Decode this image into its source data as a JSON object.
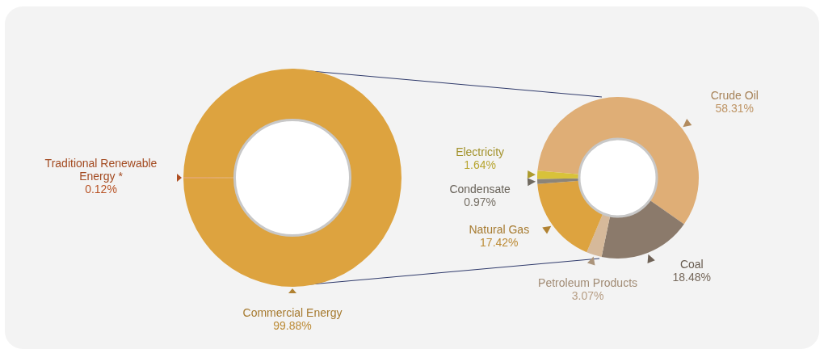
{
  "chart_data": [
    {
      "type": "donut",
      "categories": [
        "Traditional Renewable Energy *",
        "Commercial Energy"
      ],
      "values": [
        0.12,
        99.88
      ],
      "colors": [
        "#d9622b",
        "#dda33f"
      ],
      "value_labels": [
        "0.12%",
        "99.88%"
      ],
      "legend": false
    },
    {
      "type": "donut",
      "categories": [
        "Crude Oil",
        "Coal",
        "Petroleum Products",
        "Natural Gas",
        "Condensate",
        "Electricity"
      ],
      "values": [
        58.31,
        18.48,
        3.07,
        17.42,
        0.97,
        1.64
      ],
      "colors": [
        "#dfae76",
        "#8b7a6b",
        "#d6b99a",
        "#dda33f",
        "#8c8478",
        "#d8c23a"
      ],
      "value_labels": [
        "58.31%",
        "18.48%",
        "3.07%",
        "17.42%",
        "0.97%",
        "1.64%"
      ],
      "legend": false
    }
  ]
}
